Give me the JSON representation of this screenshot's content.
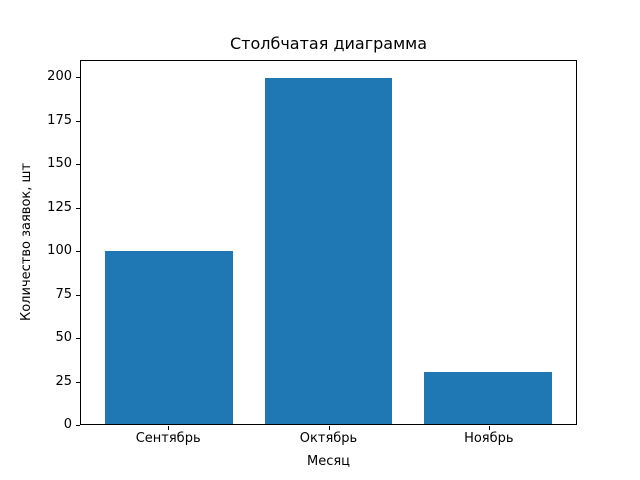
{
  "chart_data": {
    "type": "bar",
    "title": "Столбчатая диаграмма",
    "xlabel": "Месяц",
    "ylabel": "Количество заявок, шт",
    "categories": [
      "Сентябрь",
      "Октябрь",
      "Ноябрь"
    ],
    "values": [
      100,
      200,
      30
    ],
    "yticks": [
      0,
      25,
      50,
      75,
      100,
      125,
      150,
      175,
      200
    ],
    "ylim": [
      0,
      210
    ],
    "xlim": [
      -0.55,
      2.55
    ],
    "bar_width": 0.8,
    "bar_color": "#1f77b4",
    "background_color": "#ffffff",
    "grid": false,
    "legend": "none"
  }
}
